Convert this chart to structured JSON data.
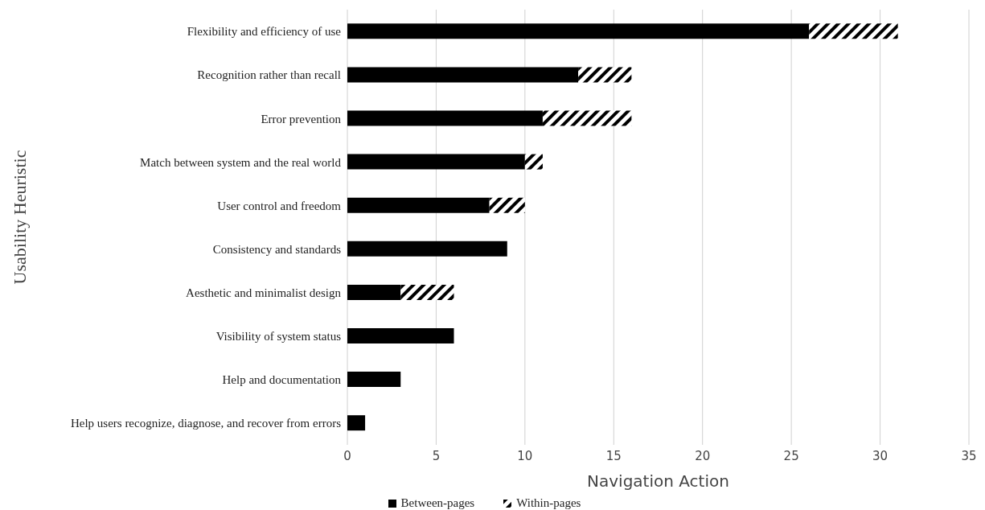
{
  "chart_data": {
    "type": "bar",
    "orientation": "horizontal",
    "stacked": true,
    "xlabel": "Navigation Action",
    "ylabel": "Usability Heuristic",
    "categories": [
      "Flexibility and efficiency of use",
      "Recognition rather than recall",
      "Error prevention",
      "Match between system and the real world",
      "User control and freedom",
      "Consistency and standards",
      "Aesthetic and minimalist design",
      "Visibility of system status",
      "Help and documentation",
      "Help users recognize, diagnose, and recover from errors"
    ],
    "series": [
      {
        "name": "Between-pages",
        "color": "#000000",
        "values": [
          26,
          13,
          11,
          10,
          8,
          9,
          3,
          6,
          3,
          1
        ]
      },
      {
        "name": "Within-pages",
        "color": "#000000",
        "values": [
          5,
          3,
          5,
          1,
          2,
          0,
          3,
          0,
          0,
          0
        ]
      }
    ],
    "xlim": [
      0,
      35
    ],
    "xticks": [
      0,
      5,
      10,
      15,
      20,
      25,
      30,
      35
    ],
    "grid": "x",
    "legend": "bottom"
  }
}
